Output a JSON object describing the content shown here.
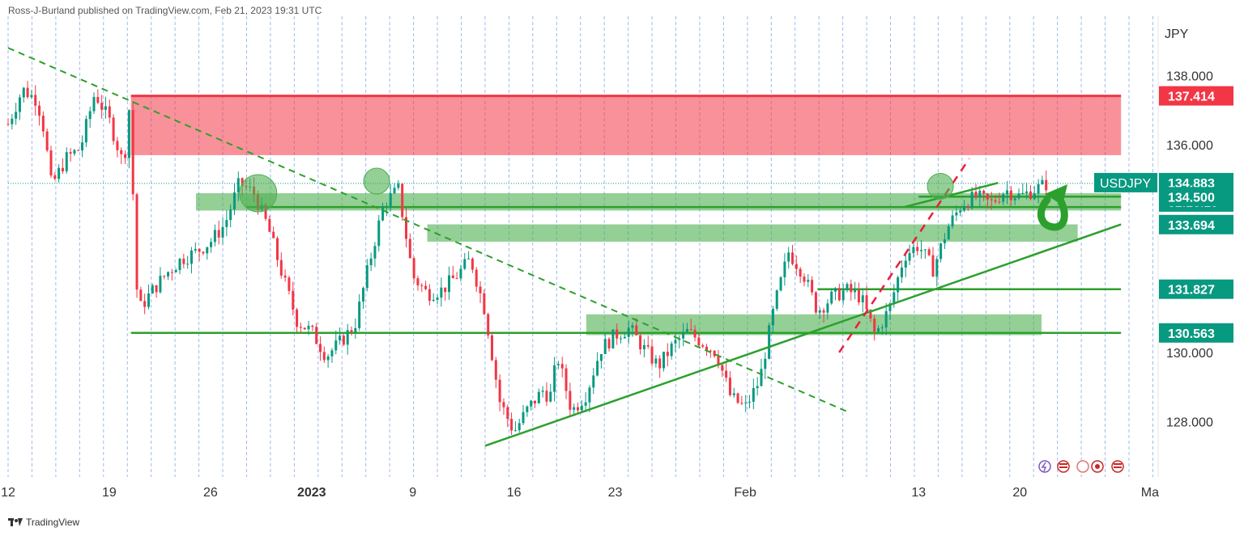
{
  "header": {
    "publisher": "Ross-J-Burland published on TradingView.com, Feb 21, 2023 19:31 UTC"
  },
  "footer": {
    "brand": "TradingView"
  },
  "chart_data": {
    "type": "candlestick",
    "symbol": "USDJPY",
    "currency": "JPY",
    "ylim": [
      126.4,
      139.6
    ],
    "y_ticks": [
      {
        "v": 138.0,
        "label": "138.000"
      },
      {
        "v": 136.0,
        "label": "136.000"
      },
      {
        "v": 130.0,
        "label": "130.000"
      },
      {
        "v": 128.0,
        "label": "128.000"
      }
    ],
    "x_ticks": [
      {
        "d": 0,
        "label": "12"
      },
      {
        "d": 7,
        "label": "19"
      },
      {
        "d": 14,
        "label": "26"
      },
      {
        "d": 21,
        "label": "2023"
      },
      {
        "d": 28,
        "label": "9"
      },
      {
        "d": 35,
        "label": "16"
      },
      {
        "d": 42,
        "label": "23"
      },
      {
        "d": 51,
        "label": "Feb"
      },
      {
        "d": 63,
        "label": "13"
      },
      {
        "d": 70,
        "label": "20"
      },
      {
        "d": 79,
        "label": "Ma"
      }
    ],
    "price_labels": [
      {
        "v": 137.414,
        "label": "137.414",
        "color": "#f23645"
      },
      {
        "v": 134.883,
        "label": "134.883",
        "color": "#089981",
        "name": "USDJPY",
        "countdown": "02:28:29"
      },
      {
        "v": 134.5,
        "label": "134.500",
        "color": "#089981"
      },
      {
        "v": 133.694,
        "label": "133.694",
        "color": "#089981"
      },
      {
        "v": 131.827,
        "label": "131.827",
        "color": "#089981"
      },
      {
        "v": 130.563,
        "label": "130.563",
        "color": "#089981"
      }
    ],
    "close_points": [
      [
        0,
        136.6
      ],
      [
        1,
        137.6
      ],
      [
        2,
        137.3
      ],
      [
        2.5,
        136.4
      ],
      [
        3,
        134.8
      ],
      [
        4,
        135.6
      ],
      [
        5,
        135.9
      ],
      [
        6,
        137.5
      ],
      [
        7,
        136.7
      ],
      [
        8,
        135.4
      ],
      [
        8.5,
        137.6
      ],
      [
        8.7,
        133.3
      ],
      [
        9,
        131.2
      ],
      [
        10,
        131.8
      ],
      [
        11,
        132.3
      ],
      [
        12,
        132.7
      ],
      [
        13,
        132.9
      ],
      [
        14,
        133.2
      ],
      [
        15,
        133.7
      ],
      [
        16,
        134.9
      ],
      [
        17,
        134.6
      ],
      [
        18,
        133.6
      ],
      [
        19,
        132.2
      ],
      [
        20,
        130.9
      ],
      [
        21,
        130.6
      ],
      [
        22,
        129.9
      ],
      [
        23,
        130.3
      ],
      [
        24,
        130.8
      ],
      [
        25,
        132.6
      ],
      [
        26,
        134.3
      ],
      [
        27,
        134.7
      ],
      [
        28,
        132.2
      ],
      [
        29,
        131.7
      ],
      [
        30,
        131.8
      ],
      [
        31,
        132.2
      ],
      [
        32,
        132.7
      ],
      [
        33,
        131.2
      ],
      [
        34,
        128.6
      ],
      [
        35,
        127.7
      ],
      [
        36,
        128.4
      ],
      [
        37,
        128.9
      ],
      [
        37.5,
        128.7
      ],
      [
        38,
        129.9
      ],
      [
        39,
        128.3
      ],
      [
        40,
        128.8
      ],
      [
        41,
        130.1
      ],
      [
        42,
        130.5
      ],
      [
        43,
        130.7
      ],
      [
        44,
        130.1
      ],
      [
        45,
        129.6
      ],
      [
        46,
        130.2
      ],
      [
        47,
        130.6
      ],
      [
        48,
        130.3
      ],
      [
        49,
        130.0
      ],
      [
        50,
        128.7
      ],
      [
        51,
        128.4
      ],
      [
        52,
        129.2
      ],
      [
        53,
        131.3
      ],
      [
        54,
        132.9
      ],
      [
        55,
        132.3
      ],
      [
        56,
        131.2
      ],
      [
        57,
        131.6
      ],
      [
        58,
        131.8
      ],
      [
        59,
        131.6
      ],
      [
        60,
        130.5
      ],
      [
        61,
        131.3
      ],
      [
        62,
        132.8
      ],
      [
        63,
        133.1
      ],
      [
        64,
        132.4
      ],
      [
        65,
        133.6
      ],
      [
        66,
        134.3
      ],
      [
        67,
        134.5
      ],
      [
        68,
        134.3
      ],
      [
        69,
        134.7
      ],
      [
        70,
        134.5
      ],
      [
        71,
        134.7
      ],
      [
        72,
        134.9
      ]
    ],
    "zones": [
      {
        "d1": 8.5,
        "d2": 77,
        "y1": 135.7,
        "y2": 137.4,
        "color": "#f23645",
        "opacity": 0.55
      },
      {
        "d1": 13,
        "d2": 77,
        "y1": 134.1,
        "y2": 134.6,
        "color": "#4caf50",
        "opacity": 0.6
      },
      {
        "d1": 29,
        "d2": 74,
        "y1": 133.2,
        "y2": 133.7,
        "color": "#4caf50",
        "opacity": 0.6
      },
      {
        "d1": 40,
        "d2": 71.5,
        "y1": 130.5,
        "y2": 131.1,
        "color": "#4caf50",
        "opacity": 0.6
      }
    ],
    "hlines": [
      {
        "d1": 8.5,
        "d2": 77,
        "y": 137.414,
        "color": "#f23645",
        "width": 3
      },
      {
        "d1": 8.5,
        "d2": 77,
        "y": 130.563,
        "color": "#2ca02c",
        "width": 2.5
      },
      {
        "d1": 56,
        "d2": 77,
        "y": 131.827,
        "color": "#2ca02c",
        "width": 2.5
      },
      {
        "d1": 63,
        "d2": 77,
        "y": 134.5,
        "color": "#2ca02c",
        "width": 2.5
      },
      {
        "d1": 16.5,
        "d2": 77,
        "y": 134.2,
        "color": "#2ca02c",
        "width": 2.5
      }
    ],
    "trendlines": [
      {
        "d1": 0,
        "y1": 138.8,
        "d2": 58,
        "y2": 128.3,
        "color": "#2ca02c",
        "dash": "8,6",
        "width": 2
      },
      {
        "d1": 33,
        "y1": 127.3,
        "d2": 77,
        "y2": 133.7,
        "color": "#2ca02c",
        "dash": "",
        "width": 2.5
      },
      {
        "d1": 62,
        "y1": 134.2,
        "d2": 68.5,
        "y2": 134.9,
        "color": "#2ca02c",
        "dash": "",
        "width": 2.5
      },
      {
        "d1": 57.5,
        "y1": 130.0,
        "d2": 66.5,
        "y2": 135.6,
        "color": "#e91e3c",
        "dash": "10,8",
        "width": 2.5
      }
    ],
    "circles": [
      {
        "d": 17.3,
        "y": 134.6,
        "r": 23
      },
      {
        "d": 25.5,
        "y": 134.95,
        "r": 16
      },
      {
        "d": 64.5,
        "y": 134.8,
        "r": 16
      }
    ]
  }
}
